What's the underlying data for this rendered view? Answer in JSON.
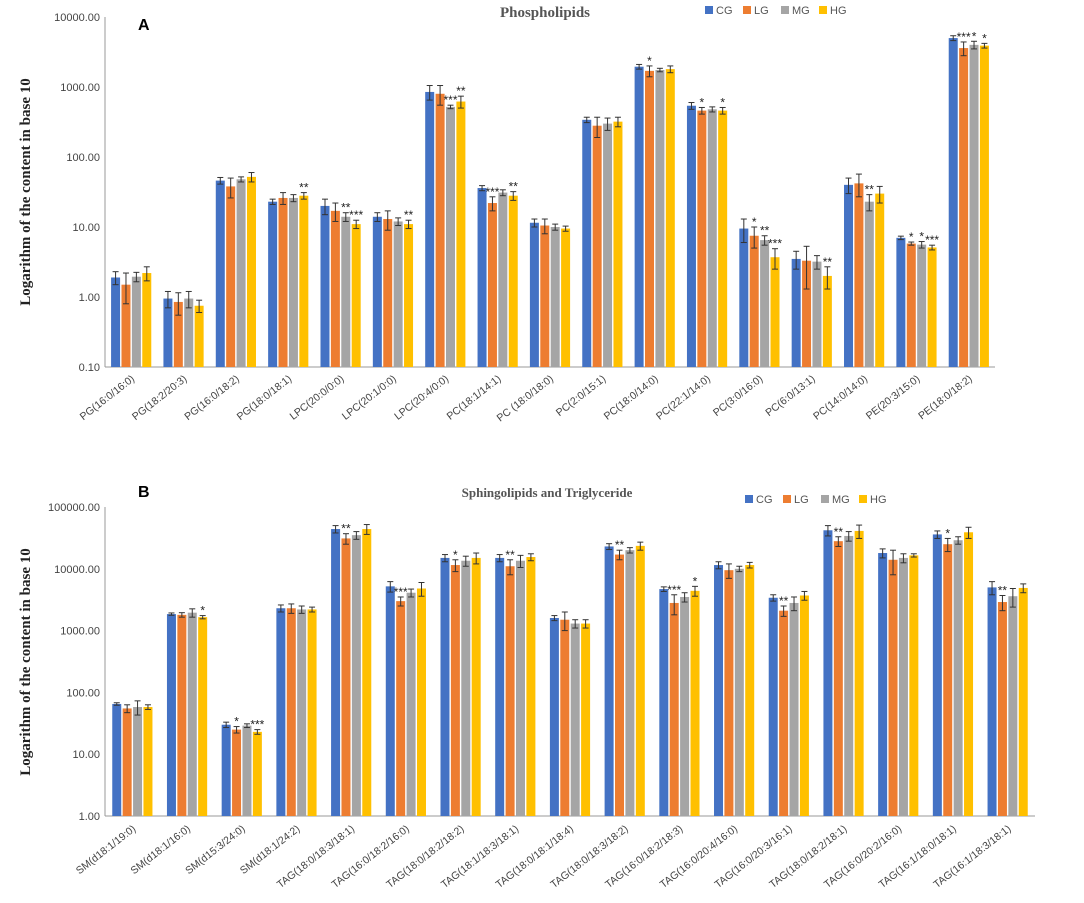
{
  "chart_data": [
    {
      "panel": "A",
      "type": "bar",
      "title": "Phospholipids",
      "ylabel": "Logarithm of the content in base 10",
      "yscale": "log10",
      "ylim": [
        0.1,
        10000
      ],
      "yticks": [
        "10000.00",
        "1000.00",
        "100.00",
        "10.00",
        "1.00",
        "0.10"
      ],
      "legend": [
        "CG",
        "LG",
        "MG",
        "HG"
      ],
      "legend_position": "top-right",
      "colors": [
        "#4472C4",
        "#ED7D31",
        "#A5A5A5",
        "#FFC000"
      ],
      "categories": [
        "PG(16:0/16:0)",
        "PG(18:2/20:3)",
        "PG(16:0/18:2)",
        "PG(18:0/18:1)",
        "LPC(20:0/0:0)",
        "LPC(20:1/0:0)",
        "LPC(20:4/0:0)",
        "PC(18:1/14:1)",
        "PC (18:0/18:0)",
        "PC(2:0/15:1)",
        "PC(18:0/14:0)",
        "PC(22:1/14:0)",
        "PC(3:0/16:0)",
        "PC(6:0/13:1)",
        "PC(14:0/14:0)",
        "PE(20:3/15:0)",
        "PE(18:0/18:2)"
      ],
      "series": [
        {
          "name": "CG",
          "values": [
            1.9,
            0.95,
            46,
            23,
            20,
            14,
            850,
            36,
            11.5,
            340,
            1950,
            540,
            9.5,
            3.5,
            40,
            7,
            5000
          ],
          "errors": [
            0.4,
            0.25,
            5,
            2,
            5,
            2,
            200,
            3,
            1.5,
            30,
            150,
            60,
            3.5,
            1,
            10,
            0.4,
            400
          ]
        },
        {
          "name": "LG",
          "values": [
            1.5,
            0.85,
            38,
            26,
            17,
            13,
            800,
            22,
            10.5,
            280,
            1700,
            460,
            7.5,
            3.3,
            42,
            5.8,
            3600
          ],
          "errors": [
            0.7,
            0.3,
            12,
            5,
            5,
            4,
            250,
            5,
            2.5,
            90,
            300,
            50,
            2.5,
            2,
            15,
            0.3,
            800
          ]
        },
        {
          "name": "MG",
          "values": [
            1.95,
            0.95,
            48,
            26,
            14,
            12,
            520,
            31,
            10,
            300,
            1750,
            480,
            6.5,
            3.2,
            23,
            5.6,
            4000
          ],
          "errors": [
            0.3,
            0.25,
            4,
            3,
            2,
            1.5,
            30,
            3,
            1,
            60,
            100,
            40,
            1,
            0.7,
            6,
            0.6,
            500
          ]
        },
        {
          "name": "HG",
          "values": [
            2.2,
            0.75,
            52,
            28,
            11,
            11,
            620,
            28,
            9.5,
            320,
            1800,
            460,
            3.7,
            2,
            30,
            5.1,
            3900
          ],
          "errors": [
            0.5,
            0.15,
            8,
            3,
            1.5,
            1.5,
            120,
            4,
            0.8,
            50,
            200,
            50,
            1.2,
            0.7,
            8,
            0.4,
            300
          ]
        }
      ],
      "significance": [
        {
          "category": "PG(18:0/18:1)",
          "series": "HG",
          "text": "**"
        },
        {
          "category": "LPC(20:0/0:0)",
          "series": "MG",
          "text": "**"
        },
        {
          "category": "LPC(20:0/0:0)",
          "series": "HG",
          "text": "***"
        },
        {
          "category": "LPC(20:1/0:0)",
          "series": "HG",
          "text": "**"
        },
        {
          "category": "LPC(20:4/0:0)",
          "series": "MG",
          "text": "***"
        },
        {
          "category": "LPC(20:4/0:0)",
          "series": "HG",
          "text": "**"
        },
        {
          "category": "PC(18:1/14:1)",
          "series": "LG",
          "text": "***"
        },
        {
          "category": "PC(18:1/14:1)",
          "series": "HG",
          "text": "**"
        },
        {
          "category": "PC(18:0/14:0)",
          "series": "LG",
          "text": "*"
        },
        {
          "category": "PC(22:1/14:0)",
          "series": "LG",
          "text": "*"
        },
        {
          "category": "PC(22:1/14:0)",
          "series": "HG",
          "text": "*"
        },
        {
          "category": "PC(3:0/16:0)",
          "series": "LG",
          "text": "*"
        },
        {
          "category": "PC(3:0/16:0)",
          "series": "MG",
          "text": "**"
        },
        {
          "category": "PC(3:0/16:0)",
          "series": "HG",
          "text": "***"
        },
        {
          "category": "PC(6:0/13:1)",
          "series": "HG",
          "text": "**"
        },
        {
          "category": "PC(14:0/14:0)",
          "series": "MG",
          "text": "**"
        },
        {
          "category": "PE(20:3/15:0)",
          "series": "LG",
          "text": "*"
        },
        {
          "category": "PE(20:3/15:0)",
          "series": "MG",
          "text": "*"
        },
        {
          "category": "PE(20:3/15:0)",
          "series": "HG",
          "text": "***"
        },
        {
          "category": "PE(18:0/18:2)",
          "series": "LG",
          "text": "***"
        },
        {
          "category": "PE(18:0/18:2)",
          "series": "MG",
          "text": "*"
        },
        {
          "category": "PE(18:0/18:2)",
          "series": "HG",
          "text": "*"
        }
      ]
    },
    {
      "panel": "B",
      "type": "bar",
      "title": "Sphingolipids and Triglyceride",
      "ylabel": "Logarithm of the content in base 10",
      "yscale": "log10",
      "ylim": [
        1,
        100000
      ],
      "yticks": [
        "100000.00",
        "10000.00",
        "1000.00",
        "100.00",
        "10.00",
        "1.00"
      ],
      "legend": [
        "CG",
        "LG",
        "MG",
        "HG"
      ],
      "legend_position": "top-right",
      "colors": [
        "#4472C4",
        "#ED7D31",
        "#A5A5A5",
        "#FFC000"
      ],
      "categories": [
        "SM(d18:1/19:0)",
        "SM(d18:1/16:0)",
        "SM(d15:3/24:0)",
        "SM(d18:1/24:2)",
        "TAG(18:0/18:3/18:1)",
        "TAG(16:0/18:2/16:0)",
        "TAG(18:0/18:2/18:2)",
        "TAG(18:1/18:3/18:1)",
        "TAG(18:0/18:1/18:4)",
        "TAG(18:0/18:3/18:2)",
        "TAG(16:0/18:2/18:3)",
        "TAG(16:0/20:4/16:0)",
        "TAG(16:0/20:3/16:1)",
        "TAG(18:0/18:2/18:1)",
        "TAG(16:0/20:2/16:0)",
        "TAG(16:1/18:0/18:1)",
        "TAG(16:1/18:3/18:1)"
      ],
      "series": [
        {
          "name": "CG",
          "values": [
            65,
            1850,
            30,
            2300,
            44000,
            5200,
            15000,
            15000,
            1600,
            23000,
            4700,
            11500,
            3400,
            42000,
            18000,
            36000,
            5000
          ],
          "errors": [
            3,
            80,
            3,
            300,
            6000,
            1000,
            2000,
            2000,
            150,
            2500,
            400,
            1500,
            400,
            8000,
            3000,
            5000,
            1200
          ]
        },
        {
          "name": "LG",
          "values": [
            55,
            1800,
            25,
            2300,
            31000,
            3000,
            11500,
            11000,
            1500,
            17000,
            2800,
            9500,
            2100,
            28000,
            14000,
            25000,
            2900
          ],
          "errors": [
            8,
            150,
            3,
            400,
            6000,
            500,
            2500,
            3000,
            500,
            3000,
            1000,
            2500,
            400,
            5000,
            6000,
            6000,
            800
          ]
        },
        {
          "name": "MG",
          "values": [
            58,
            1950,
            29,
            2200,
            35000,
            4100,
            13500,
            13500,
            1300,
            20000,
            3500,
            10000,
            2800,
            34000,
            15000,
            29000,
            3600
          ],
          "errors": [
            15,
            300,
            2,
            300,
            5000,
            600,
            2500,
            3000,
            200,
            2000,
            600,
            1000,
            700,
            6000,
            2500,
            4000,
            1200
          ]
        },
        {
          "name": "HG",
          "values": [
            58,
            1650,
            23,
            2200,
            44000,
            4800,
            15000,
            15500,
            1300,
            23500,
            4400,
            11500,
            3700,
            41000,
            16500,
            39000,
            4900
          ],
          "errors": [
            5,
            100,
            2,
            200,
            8000,
            1200,
            3000,
            2000,
            200,
            3500,
            800,
            1200,
            600,
            10000,
            1000,
            8000,
            800
          ]
        }
      ],
      "significance": [
        {
          "category": "SM(d18:1/16:0)",
          "series": "HG",
          "text": "*"
        },
        {
          "category": "SM(d15:3/24:0)",
          "series": "LG",
          "text": "*"
        },
        {
          "category": "SM(d15:3/24:0)",
          "series": "HG",
          "text": "***"
        },
        {
          "category": "TAG(18:0/18:3/18:1)",
          "series": "LG",
          "text": "**"
        },
        {
          "category": "TAG(16:0/18:2/16:0)",
          "series": "LG",
          "text": "***"
        },
        {
          "category": "TAG(18:0/18:2/18:2)",
          "series": "LG",
          "text": "*"
        },
        {
          "category": "TAG(18:1/18:3/18:1)",
          "series": "LG",
          "text": "**"
        },
        {
          "category": "TAG(18:0/18:3/18:2)",
          "series": "LG",
          "text": "**"
        },
        {
          "category": "TAG(16:0/18:2/18:3)",
          "series": "LG",
          "text": "***"
        },
        {
          "category": "TAG(16:0/18:2/18:3)",
          "series": "HG",
          "text": "*"
        },
        {
          "category": "TAG(16:0/20:3/16:1)",
          "series": "LG",
          "text": "**"
        },
        {
          "category": "TAG(18:0/18:2/18:1)",
          "series": "LG",
          "text": "**"
        },
        {
          "category": "TAG(16:1/18:0/18:1)",
          "series": "LG",
          "text": "*"
        },
        {
          "category": "TAG(16:1/18:3/18:1)",
          "series": "LG",
          "text": "**"
        }
      ]
    }
  ]
}
